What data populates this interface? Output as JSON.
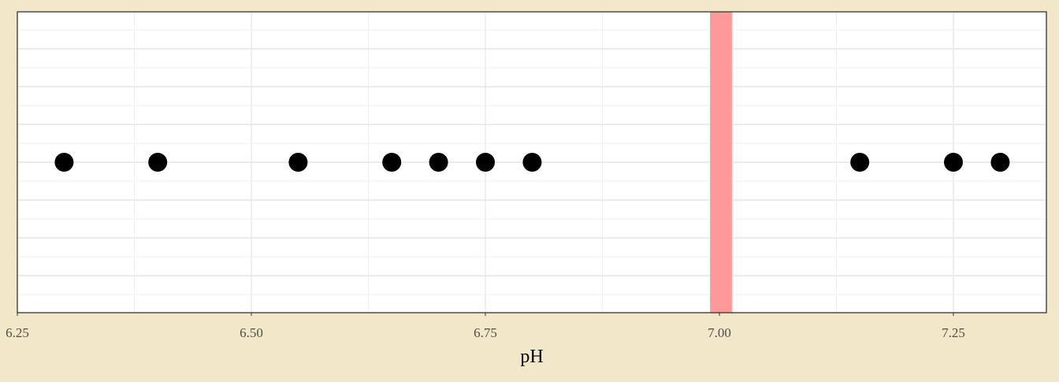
{
  "chart_data": {
    "type": "scatter",
    "title": "",
    "xlabel": "pH",
    "ylabel": "",
    "xlim": [
      6.25,
      7.35
    ],
    "x_ticks": [
      {
        "value": 6.25,
        "label": "6.25"
      },
      {
        "value": 6.5,
        "label": "6.50"
      },
      {
        "value": 6.75,
        "label": "6.75"
      },
      {
        "value": 7.0,
        "label": "7.00"
      },
      {
        "value": 7.25,
        "label": "7.25"
      }
    ],
    "grid": true,
    "points": [
      {
        "x": 6.3,
        "y": 0
      },
      {
        "x": 6.4,
        "y": 0
      },
      {
        "x": 6.55,
        "y": 0
      },
      {
        "x": 6.65,
        "y": 0
      },
      {
        "x": 6.7,
        "y": 0
      },
      {
        "x": 6.75,
        "y": 0
      },
      {
        "x": 6.8,
        "y": 0
      },
      {
        "x": 7.15,
        "y": 0
      },
      {
        "x": 7.25,
        "y": 0
      },
      {
        "x": 7.3,
        "y": 0
      }
    ],
    "reference_band": {
      "x_from": 6.99,
      "x_to": 7.01,
      "color": "#FF9999"
    },
    "point_color": "#000000",
    "background_color": "#F2E8C9",
    "panel_color": "#FFFFFF"
  }
}
